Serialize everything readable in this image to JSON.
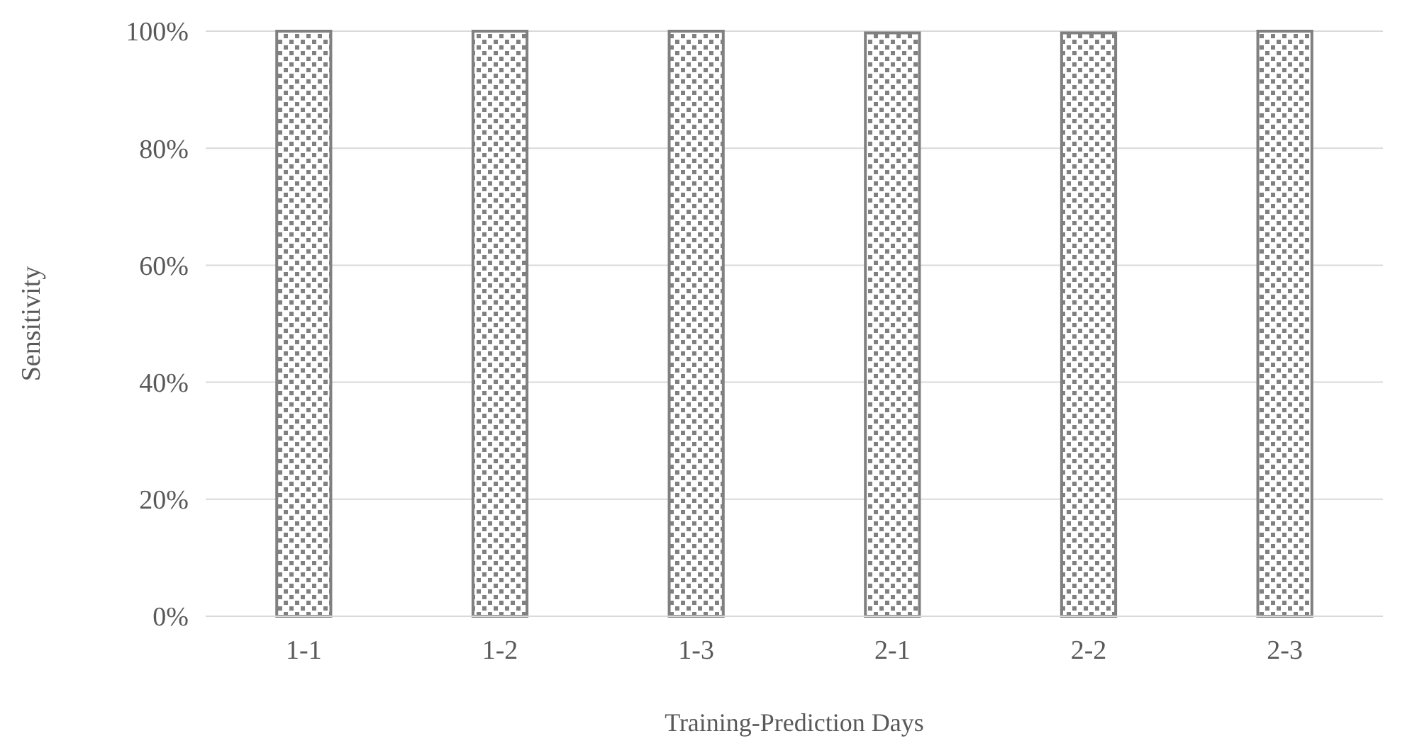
{
  "chart_data": {
    "type": "bar",
    "xlabel": "Training-Prediction Days",
    "ylabel": "Sensitivity",
    "categories": [
      "1-1",
      "1-2",
      "1-3",
      "2-1",
      "2-2",
      "2-3"
    ],
    "values": [
      100,
      100,
      100,
      99.7,
      99.7,
      100
    ],
    "color": "#808080",
    "ylim": [
      0,
      100
    ],
    "yticks": [
      {
        "value": 0,
        "label": "0%"
      },
      {
        "value": 20,
        "label": "20%"
      },
      {
        "value": 40,
        "label": "40%"
      },
      {
        "value": 60,
        "label": "60%"
      },
      {
        "value": 80,
        "label": "80%"
      },
      {
        "value": 100,
        "label": "100%"
      }
    ],
    "grid": "y"
  }
}
